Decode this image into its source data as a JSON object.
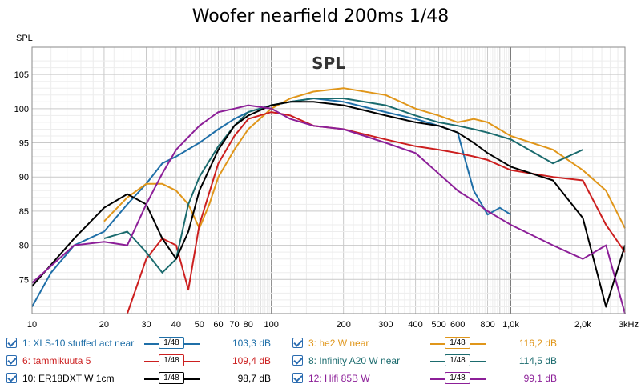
{
  "chart_data": {
    "type": "line",
    "title": "Woofer nearfield 200ms 1/48",
    "ylabel": "SPL",
    "plot_label": "SPL",
    "x_scale": "log",
    "xlim": [
      10,
      3000
    ],
    "ylim": [
      70,
      109
    ],
    "grid": true,
    "x_ticks": [
      {
        "v": 10,
        "label": "10"
      },
      {
        "v": 20,
        "label": "20"
      },
      {
        "v": 30,
        "label": "30"
      },
      {
        "v": 40,
        "label": "40"
      },
      {
        "v": 50,
        "label": "50"
      },
      {
        "v": 60,
        "label": "60"
      },
      {
        "v": 70,
        "label": "70"
      },
      {
        "v": 80,
        "label": "80"
      },
      {
        "v": 100,
        "label": "100"
      },
      {
        "v": 200,
        "label": "200"
      },
      {
        "v": 300,
        "label": "300"
      },
      {
        "v": 400,
        "label": "400"
      },
      {
        "v": 500,
        "label": "500"
      },
      {
        "v": 600,
        "label": "600"
      },
      {
        "v": 800,
        "label": "800"
      },
      {
        "v": 1000,
        "label": "1,0k"
      },
      {
        "v": 2000,
        "label": "2,0k"
      },
      {
        "v": 3000,
        "label": "3kHz"
      }
    ],
    "y_ticks": [
      {
        "v": 75,
        "label": "75"
      },
      {
        "v": 80,
        "label": "80"
      },
      {
        "v": 85,
        "label": "85"
      },
      {
        "v": 90,
        "label": "90"
      },
      {
        "v": 95,
        "label": "95"
      },
      {
        "v": 100,
        "label": "100"
      },
      {
        "v": 105,
        "label": "105"
      }
    ],
    "series": [
      {
        "name": "1: XLS-10 stuffed act near",
        "color": "#1f6fa8",
        "smoothing": "1/48",
        "value": "103,3 dB",
        "x": [
          10,
          12,
          15,
          20,
          25,
          30,
          35,
          40,
          50,
          60,
          70,
          80,
          100,
          120,
          150,
          200,
          300,
          400,
          500,
          600,
          700,
          800,
          900,
          1000
        ],
        "y": [
          71,
          76,
          80,
          82,
          86,
          89,
          92,
          93,
          95,
          97,
          98.5,
          99.5,
          100.5,
          101,
          101.5,
          101,
          99.5,
          98.5,
          97.5,
          96.5,
          88,
          84.5,
          85.5,
          84.5
        ]
      },
      {
        "name": "3: he2 W near",
        "color": "#e0961a",
        "smoothing": "1/48",
        "value": "116,2 dB",
        "x": [
          20,
          25,
          30,
          35,
          40,
          45,
          50,
          55,
          60,
          70,
          80,
          100,
          120,
          150,
          200,
          300,
          400,
          500,
          600,
          700,
          800,
          1000,
          1500,
          2000,
          2500,
          3000
        ],
        "y": [
          83.5,
          87,
          89,
          89,
          88,
          86,
          82.5,
          86,
          90,
          94,
          97,
          100,
          101.5,
          102.5,
          103,
          102,
          100,
          99,
          98,
          98.5,
          98,
          96,
          94,
          91,
          88,
          82.5
        ]
      },
      {
        "name": "6: tammikuuta 5",
        "color": "#cc1f1f",
        "smoothing": "1/48",
        "value": "109,4 dB",
        "x": [
          25,
          30,
          35,
          40,
          45,
          50,
          60,
          70,
          80,
          100,
          120,
          150,
          200,
          300,
          400,
          500,
          600,
          700,
          800,
          1000,
          1500,
          2000,
          2500,
          3000
        ],
        "y": [
          70,
          78,
          81,
          80,
          73.5,
          83,
          92,
          96,
          98.5,
          99.5,
          99,
          97.5,
          97,
          95.5,
          94.5,
          94,
          93.5,
          93,
          92.5,
          91,
          90,
          89.5,
          83,
          79
        ]
      },
      {
        "name": "8: Infinity A20 W near",
        "color": "#1b6b6e",
        "smoothing": "1/48",
        "value": "114,5 dB",
        "x": [
          20,
          25,
          30,
          35,
          40,
          45,
          50,
          60,
          70,
          80,
          100,
          120,
          150,
          200,
          300,
          400,
          500,
          600,
          700,
          800,
          1000,
          1500,
          2000
        ],
        "y": [
          81,
          82,
          79,
          76,
          78,
          86,
          90,
          94.5,
          97.5,
          99.5,
          100.5,
          101,
          101.5,
          101.5,
          100.5,
          99,
          98,
          97.5,
          97,
          96.5,
          95.5,
          92,
          94
        ]
      },
      {
        "name": "10: ER18DXT W 1cm",
        "color": "#000000",
        "smoothing": "1/48",
        "value": "98,7 dB",
        "x": [
          10,
          15,
          20,
          25,
          30,
          35,
          40,
          45,
          50,
          60,
          70,
          80,
          100,
          120,
          150,
          200,
          300,
          400,
          500,
          600,
          700,
          800,
          1000,
          1500,
          2000,
          2500,
          3000
        ],
        "y": [
          74,
          81,
          85.5,
          87.5,
          86,
          81,
          78,
          82,
          88,
          94,
          97.5,
          99,
          100.5,
          101,
          101,
          100.5,
          99,
          98,
          97.5,
          96.5,
          95,
          93.5,
          91.5,
          89.5,
          84,
          71,
          80
        ]
      },
      {
        "name": "12: Hifi 85B W",
        "color": "#8c1f98",
        "smoothing": "1/48",
        "value": "99,1 dB",
        "x": [
          10,
          15,
          20,
          25,
          30,
          35,
          40,
          50,
          60,
          70,
          80,
          100,
          120,
          150,
          200,
          300,
          400,
          500,
          600,
          700,
          800,
          1000,
          1500,
          2000,
          2500,
          3000
        ],
        "y": [
          74.5,
          80,
          80.5,
          80,
          86,
          90.5,
          94,
          97.5,
          99.5,
          100,
          100.5,
          100,
          98.5,
          97.5,
          97,
          95,
          93.5,
          90.5,
          88,
          86.5,
          85,
          83,
          80,
          78,
          80,
          70
        ]
      }
    ]
  }
}
